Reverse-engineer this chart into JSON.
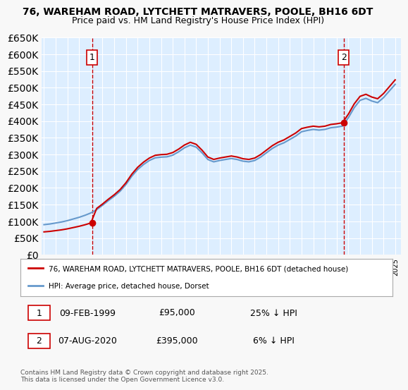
{
  "title": "76, WAREHAM ROAD, LYTCHETT MATRAVERS, POOLE, BH16 6DT",
  "subtitle": "Price paid vs. HM Land Registry's House Price Index (HPI)",
  "legend_line1": "76, WAREHAM ROAD, LYTCHETT MATRAVERS, POOLE, BH16 6DT (detached house)",
  "legend_line2": "HPI: Average price, detached house, Dorset",
  "footer": "Contains HM Land Registry data © Crown copyright and database right 2025.\nThis data is licensed under the Open Government Licence v3.0.",
  "sale1_label": "1",
  "sale1_date": "09-FEB-1999",
  "sale1_price": "£95,000",
  "sale1_hpi": "25% ↓ HPI",
  "sale2_label": "2",
  "sale2_date": "07-AUG-2020",
  "sale2_price": "£395,000",
  "sale2_hpi": "6% ↓ HPI",
  "sale1_year": 1999.1,
  "sale1_value": 95000,
  "sale2_year": 2020.6,
  "sale2_value": 395000,
  "line_color_red": "#cc0000",
  "line_color_blue": "#6699cc",
  "dashed_color": "#cc0000",
  "bg_color": "#ddeeff",
  "plot_bg": "#ddeeff",
  "grid_color": "#ffffff",
  "ylim_max": 650000,
  "ylim_min": 0
}
